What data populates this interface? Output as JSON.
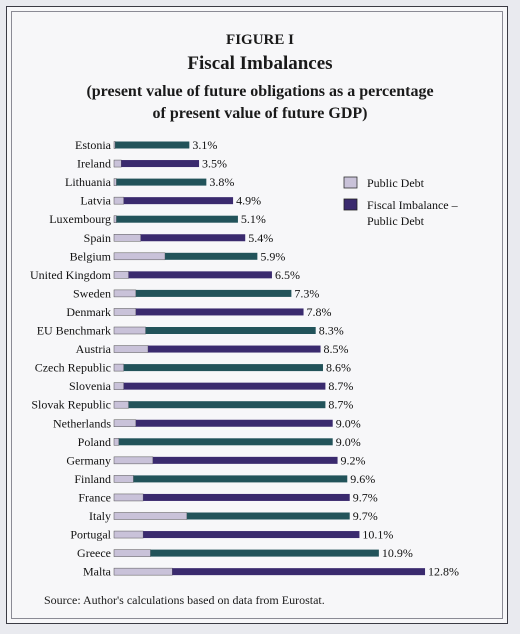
{
  "figure_label": "FIGURE I",
  "title": "Fiscal Imbalances",
  "subtitle_line1": "(present value of future obligations as a percentage",
  "subtitle_line2": "of present value of future GDP)",
  "source": "Source: Author's calculations based on data from Eurostat.",
  "colors": {
    "public_debt": "#c9c2d9",
    "fiscal_imbalance": "#3a2a6e",
    "fiscal_imbalance_alt": "#22535a"
  },
  "chart_data": {
    "type": "bar",
    "orientation": "horizontal",
    "stacked": true,
    "categories": [
      "Estonia",
      "Ireland",
      "Lithuania",
      "Latvia",
      "Luxembourg",
      "Spain",
      "Belgium",
      "United Kingdom",
      "Sweden",
      "Denmark",
      "EU Benchmark",
      "Austria",
      "Czech Republic",
      "Slovenia",
      "Slovak Republic",
      "Netherlands",
      "Poland",
      "Germany",
      "Finland",
      "France",
      "Italy",
      "Portugal",
      "Greece",
      "Malta"
    ],
    "series": [
      {
        "name": "Public Debt",
        "values": [
          0.05,
          0.3,
          0.1,
          0.4,
          0.1,
          1.1,
          2.1,
          0.6,
          0.9,
          0.9,
          1.3,
          1.4,
          0.4,
          0.4,
          0.6,
          0.9,
          0.2,
          1.6,
          0.8,
          1.2,
          3.0,
          1.2,
          1.5,
          2.4
        ]
      },
      {
        "name": "Fiscal Imbalance – Public Debt",
        "values": [
          3.05,
          3.2,
          3.7,
          4.5,
          5.0,
          4.3,
          3.8,
          5.9,
          6.4,
          6.9,
          7.0,
          7.1,
          8.2,
          8.3,
          8.1,
          8.1,
          8.8,
          7.6,
          8.8,
          8.5,
          6.7,
          8.9,
          9.4,
          10.4
        ]
      }
    ],
    "totals": [
      3.1,
      3.5,
      3.8,
      4.9,
      5.1,
      5.4,
      5.9,
      6.5,
      7.3,
      7.8,
      8.3,
      8.5,
      8.6,
      8.7,
      8.7,
      9.0,
      9.0,
      9.2,
      9.6,
      9.7,
      9.7,
      10.1,
      10.9,
      12.8
    ],
    "value_labels": [
      "3.1%",
      "3.5%",
      "3.8%",
      "4.9%",
      "5.1%",
      "5.4%",
      "5.9%",
      "6.5%",
      "7.3%",
      "7.8%",
      "8.3%",
      "8.5%",
      "8.6%",
      "8.7%",
      "8.7%",
      "9.0%",
      "9.0%",
      "9.2%",
      "9.6%",
      "9.7%",
      "9.7%",
      "10.1%",
      "10.9%",
      "12.8%"
    ],
    "legend": [
      "Public Debt",
      "Fiscal Imbalance –",
      "Public Debt"
    ],
    "legend_position": "right",
    "grid": false,
    "xlim": [
      0,
      12.8
    ]
  }
}
